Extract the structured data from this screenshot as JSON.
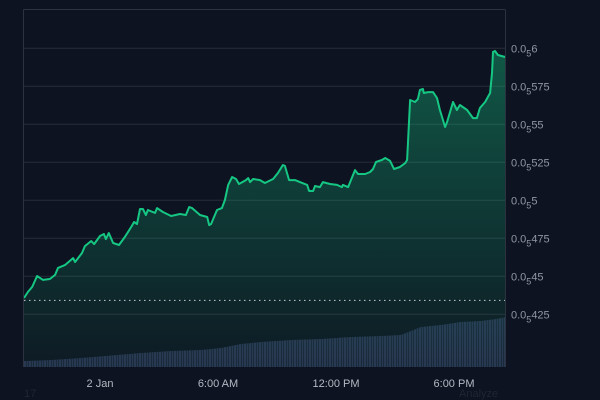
{
  "chart_data": {
    "type": "area",
    "y_axis": {
      "position": "right",
      "range": [
        4.2e-06,
        6.25e-06
      ],
      "ticks": [
        {
          "value": 6e-06,
          "prefix": "0.0",
          "sub": "5",
          "digits": "6"
        },
        {
          "value": 5.75e-06,
          "prefix": "0.0",
          "sub": "5",
          "digits": "575"
        },
        {
          "value": 5.5e-06,
          "prefix": "0.0",
          "sub": "5",
          "digits": "55"
        },
        {
          "value": 5.25e-06,
          "prefix": "0.0",
          "sub": "5",
          "digits": "525"
        },
        {
          "value": 5e-06,
          "prefix": "0.0",
          "sub": "5",
          "digits": "5"
        },
        {
          "value": 4.75e-06,
          "prefix": "0.0",
          "sub": "5",
          "digits": "475"
        },
        {
          "value": 4.5e-06,
          "prefix": "0.0",
          "sub": "5",
          "digits": "45"
        },
        {
          "value": 4.25e-06,
          "prefix": "0.0",
          "sub": "5",
          "digits": "425"
        }
      ]
    },
    "x_axis": {
      "range": [
        "01-01 20:08",
        "01-02 20:36"
      ],
      "ticks": [
        {
          "value": "01-02 00:00",
          "label": "2 Jan"
        },
        {
          "value": "01-02 06:00",
          "label": "6:00 AM"
        },
        {
          "value": "01-02 12:00",
          "label": "12:00 PM"
        },
        {
          "value": "01-02 18:00",
          "label": "6:00 PM"
        }
      ]
    },
    "grid": true,
    "reference_line": 4.342e-06,
    "colors": {
      "line": "#16c784",
      "volume": "#28324f",
      "grid": "#262c38",
      "background": "#0d1320"
    },
    "series": [
      {
        "x": [
          "01-01 20:08",
          "01-01 20:20",
          "01-01 20:33",
          "01-01 20:48",
          "01-01 21:06",
          "01-01 21:27",
          "01-01 21:43",
          "01-01 21:52",
          "01-01 22:13",
          "01-01 22:38",
          "01-01 22:44",
          "01-01 23:05",
          "01-01 23:14",
          "01-01 23:33",
          "01-01 23:42",
          "01-02 00:00",
          "01-02 00:12",
          "01-02 00:18",
          "01-02 00:27",
          "01-02 00:40",
          "01-02 00:58",
          "01-02 01:16",
          "01-02 01:35",
          "01-02 01:44",
          "01-02 01:53",
          "01-02 02:02",
          "01-02 02:11",
          "01-02 02:20",
          "01-02 02:26",
          "01-02 02:48",
          "01-02 02:54",
          "01-02 03:12",
          "01-02 03:37",
          "01-02 04:04",
          "01-02 04:22",
          "01-02 04:32",
          "01-02 04:41",
          "01-02 05:05",
          "01-02 05:27",
          "01-02 05:33",
          "01-02 05:39",
          "01-02 05:57",
          "01-02 06:12",
          "01-02 06:21",
          "01-02 06:31",
          "01-02 06:43",
          "01-02 06:55",
          "01-02 07:04",
          "01-02 07:25",
          "01-02 07:32",
          "01-02 07:38",
          "01-02 07:47",
          "01-02 08:08",
          "01-02 08:23",
          "01-02 08:48",
          "01-02 09:03",
          "01-02 09:18",
          "01-02 09:24",
          "01-02 09:37",
          "01-02 09:55",
          "01-02 10:10",
          "01-02 10:32",
          "01-02 10:38",
          "01-02 10:50",
          "01-02 10:56",
          "01-02 11:11",
          "01-02 11:20",
          "01-02 11:42",
          "01-02 12:03",
          "01-02 12:18",
          "01-02 12:21",
          "01-02 12:37",
          "01-02 12:58",
          "01-02 13:07",
          "01-02 13:29",
          "01-02 13:44",
          "01-02 13:53",
          "01-02 14:02",
          "01-02 14:20",
          "01-02 14:30",
          "01-02 14:45",
          "01-02 14:57",
          "01-02 15:15",
          "01-02 15:31",
          "01-02 15:37",
          "01-02 15:46",
          "01-02 16:01",
          "01-02 16:10",
          "01-02 16:16",
          "01-02 16:25",
          "01-02 16:28",
          "01-02 16:41",
          "01-02 16:56",
          "01-02 17:08",
          "01-02 17:17",
          "01-02 17:33",
          "01-02 17:39",
          "01-02 17:57",
          "01-02 18:09",
          "01-02 18:18",
          "01-02 18:40",
          "01-02 18:58",
          "01-02 19:10",
          "01-02 19:19",
          "01-02 19:35",
          "01-02 19:50",
          "01-02 19:56",
          "01-02 19:59",
          "01-02 20:05",
          "01-02 20:14",
          "01-02 20:36"
        ],
        "values": [
          4.357e-06,
          4.397e-06,
          4.43e-06,
          4.502e-06,
          4.476e-06,
          4.482e-06,
          4.509e-06,
          4.555e-06,
          4.574e-06,
          4.62e-06,
          4.594e-06,
          4.653e-06,
          4.699e-06,
          4.732e-06,
          4.712e-06,
          4.765e-06,
          4.778e-06,
          4.745e-06,
          4.785e-06,
          4.719e-06,
          4.706e-06,
          4.759e-06,
          4.824e-06,
          4.857e-06,
          4.844e-06,
          4.943e-06,
          4.943e-06,
          4.903e-06,
          4.936e-06,
          4.917e-06,
          4.949e-06,
          4.923e-06,
          4.897e-06,
          4.91e-06,
          4.903e-06,
          4.956e-06,
          4.949e-06,
          4.903e-06,
          4.89e-06,
          4.837e-06,
          4.844e-06,
          4.936e-06,
          4.949e-06,
          5.002e-06,
          5.101e-06,
          5.153e-06,
          5.14e-06,
          5.107e-06,
          5.133e-06,
          5.146e-06,
          5.12e-06,
          5.14e-06,
          5.133e-06,
          5.114e-06,
          5.14e-06,
          5.18e-06,
          5.232e-06,
          5.226e-06,
          5.133e-06,
          5.133e-06,
          5.12e-06,
          5.101e-06,
          5.061e-06,
          5.061e-06,
          5.094e-06,
          5.087e-06,
          5.12e-06,
          5.107e-06,
          5.101e-06,
          5.087e-06,
          5.101e-06,
          5.087e-06,
          5.199e-06,
          5.173e-06,
          5.173e-06,
          5.186e-06,
          5.206e-06,
          5.252e-06,
          5.265e-06,
          5.278e-06,
          5.259e-06,
          5.206e-06,
          5.219e-06,
          5.245e-06,
          5.265e-06,
          5.66e-06,
          5.647e-06,
          5.666e-06,
          5.726e-06,
          5.732e-06,
          5.706e-06,
          5.712e-06,
          5.712e-06,
          5.673e-06,
          5.594e-06,
          5.482e-06,
          5.515e-06,
          5.647e-06,
          5.594e-06,
          5.627e-06,
          5.594e-06,
          5.541e-06,
          5.541e-06,
          5.607e-06,
          5.647e-06,
          5.706e-06,
          5.837e-06,
          5.976e-06,
          5.982e-06,
          5.956e-06,
          5.943e-06
        ]
      }
    ],
    "volume": {
      "x": [
        "01-01 20:08",
        "01-01 21:27",
        "01-01 22:59",
        "01-02 00:30",
        "01-02 02:02",
        "01-02 03:34",
        "01-02 05:05",
        "01-02 06:06",
        "01-02 07:07",
        "01-02 08:08",
        "01-02 09:40",
        "01-02 11:11",
        "01-02 12:43",
        "01-02 14:14",
        "01-02 15:15",
        "01-02 15:46",
        "01-02 16:16",
        "01-02 17:17",
        "01-02 18:18",
        "01-02 19:19",
        "01-02 20:05",
        "01-02 20:36"
      ],
      "values": [
        6,
        7,
        9,
        11.5,
        14,
        16,
        17,
        19,
        23,
        25,
        27,
        28,
        30,
        31,
        32,
        36,
        40,
        42,
        45,
        46,
        48,
        50
      ]
    }
  },
  "footer": {
    "left_text": "17",
    "right_text": "Analyze"
  }
}
